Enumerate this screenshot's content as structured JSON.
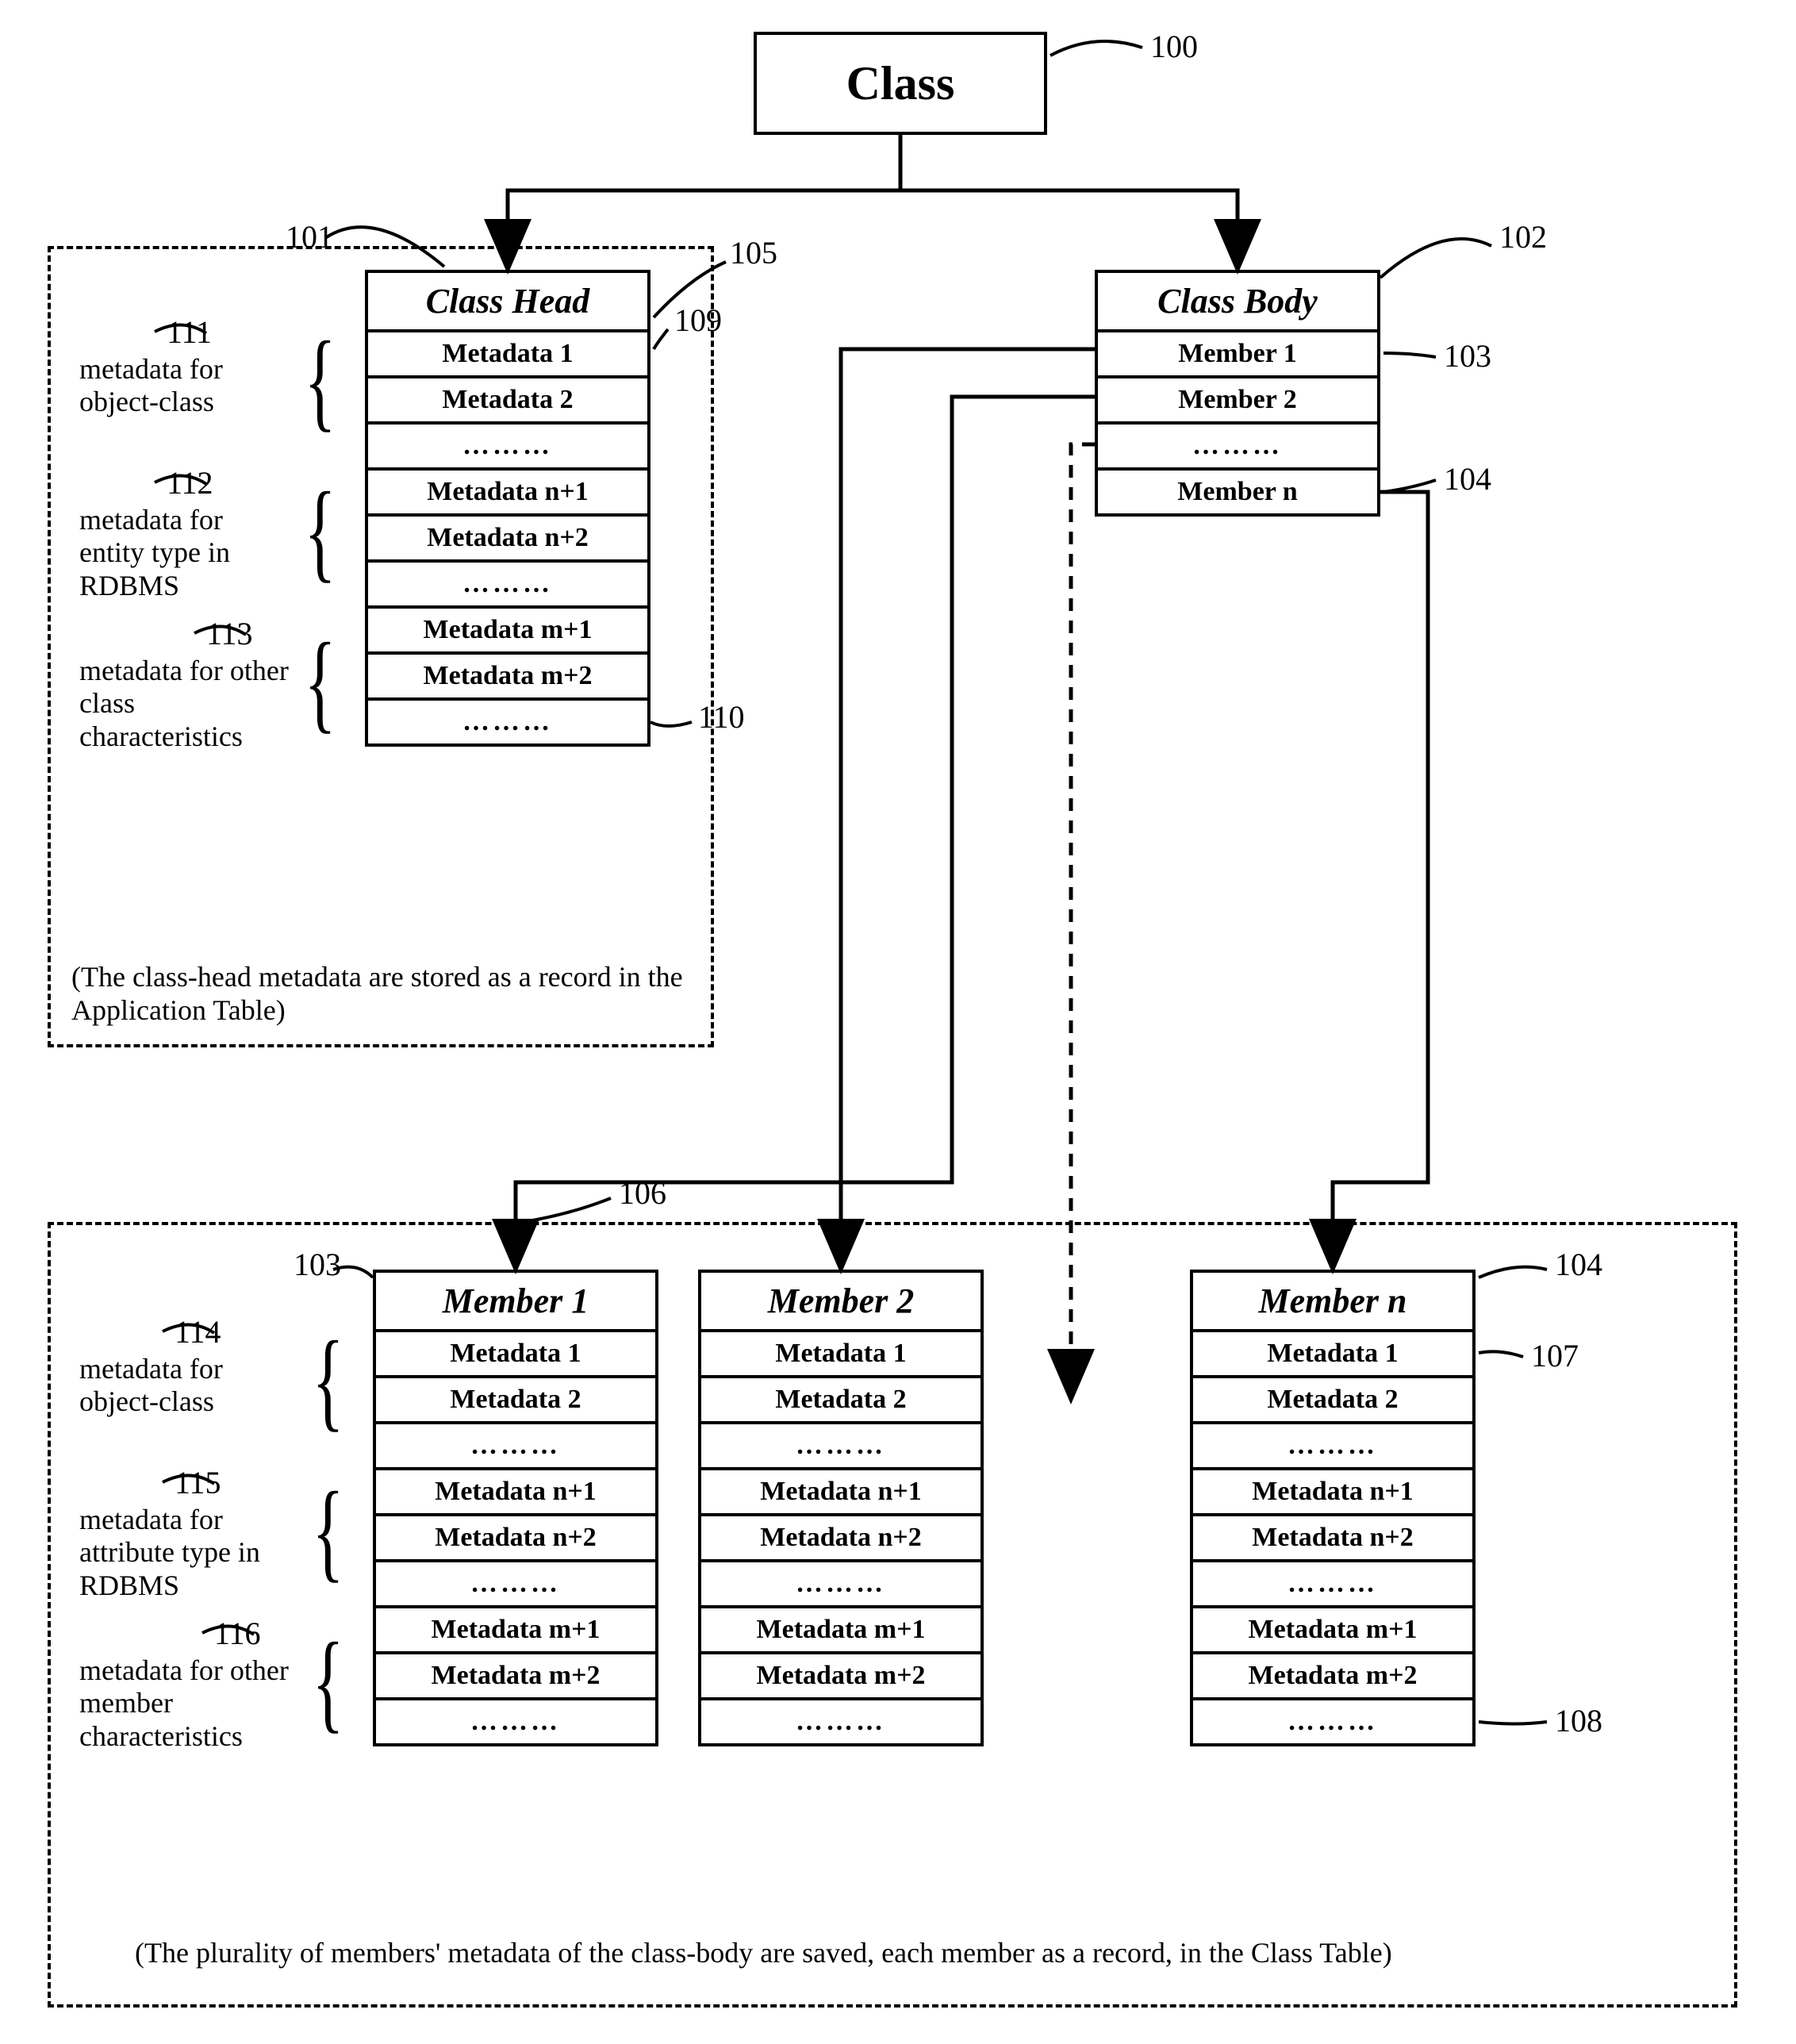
{
  "colors": {
    "line": "#000000",
    "bg": "#ffffff"
  },
  "root": {
    "label": "Class",
    "ref": "100",
    "fontsize": 60
  },
  "classHead": {
    "title": "Class Head",
    "rows": [
      "Metadata 1",
      "Metadata 2",
      "………",
      "Metadata n+1",
      "Metadata n+2",
      "………",
      "Metadata m+1",
      "Metadata m+2",
      "………"
    ],
    "ref_box": "101",
    "ref_dashed": "105",
    "ref_row1": "109",
    "ref_rowm2": "110",
    "caption": "(The class-head metadata are stored as a record in the Application Table)",
    "groups": [
      {
        "ref": "111",
        "text": "metadata for object-class"
      },
      {
        "ref": "112",
        "text": "metadata for entity type in RDBMS"
      },
      {
        "ref": "113",
        "text": "metadata for other class characteristics"
      }
    ]
  },
  "classBody": {
    "title": "Class Body",
    "rows": [
      "Member 1",
      "Member 2",
      "………",
      "Member n"
    ],
    "ref_box": "102",
    "ref_row1": "103",
    "ref_rown": "104"
  },
  "members": {
    "ref_dashed": "106",
    "caption": "(The plurality of members' metadata of the class-body are saved, each member as a record, in the Class Table)",
    "items": [
      {
        "title": "Member 1",
        "ref": "103",
        "rows": [
          "Metadata 1",
          "Metadata 2",
          "………",
          "Metadata n+1",
          "Metadata n+2",
          "………",
          "Metadata m+1",
          "Metadata m+2",
          "………"
        ]
      },
      {
        "title": "Member 2",
        "ref": null,
        "rows": [
          "Metadata 1",
          "Metadata 2",
          "………",
          "Metadata n+1",
          "Metadata n+2",
          "………",
          "Metadata m+1",
          "Metadata m+2",
          "………"
        ]
      },
      {
        "title": "Member n",
        "ref": "104",
        "rows": [
          "Metadata 1",
          "Metadata 2",
          "………",
          "Metadata n+1",
          "Metadata n+2",
          "………",
          "Metadata m+1",
          "Metadata m+2",
          "………"
        ],
        "ref_row1": "107",
        "ref_rowm2": "108"
      }
    ],
    "groups": [
      {
        "ref": "114",
        "text": "metadata for object-class"
      },
      {
        "ref": "115",
        "text": "metadata for attribute type in RDBMS"
      },
      {
        "ref": "116",
        "text": "metadata for other member characteristics"
      }
    ]
  },
  "arrows": {
    "style": {
      "stroke_width": 5,
      "head_len": 24,
      "head_w": 18
    }
  }
}
